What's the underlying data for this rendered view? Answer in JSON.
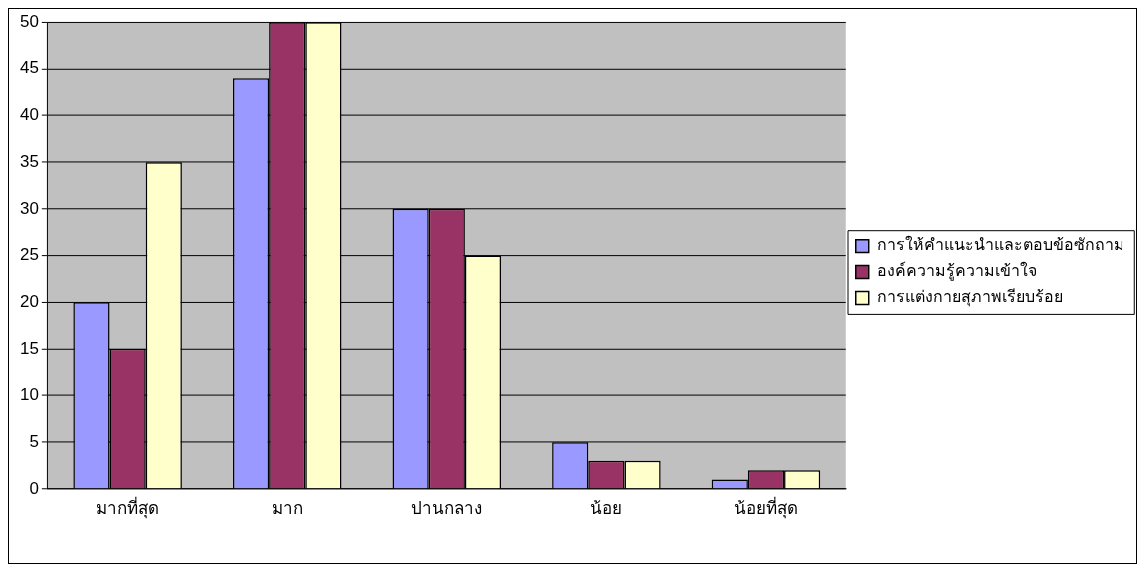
{
  "chart_data": {
    "type": "bar",
    "categories": [
      "มากที่สุด",
      "มาก",
      "ปานกลาง",
      "น้อย",
      "น้อยที่สุด"
    ],
    "series": [
      {
        "name": "การให้คำแนะนำและตอบข้อซักถาม",
        "color": "#9999ff",
        "values": [
          20,
          44,
          30,
          5,
          1
        ]
      },
      {
        "name": "องค์ความรู้ความเข้าใจ",
        "color": "#993366",
        "values": [
          15,
          50,
          30,
          3,
          2
        ]
      },
      {
        "name": "การแต่งกายสุภาพเรียบร้อย",
        "color": "#ffffcc",
        "values": [
          35,
          50,
          25,
          3,
          2
        ]
      }
    ],
    "ylim": [
      0,
      50
    ],
    "yticks": [
      0,
      5,
      10,
      15,
      20,
      25,
      30,
      35,
      40,
      45,
      50
    ],
    "grid": "y",
    "legend": "right"
  }
}
